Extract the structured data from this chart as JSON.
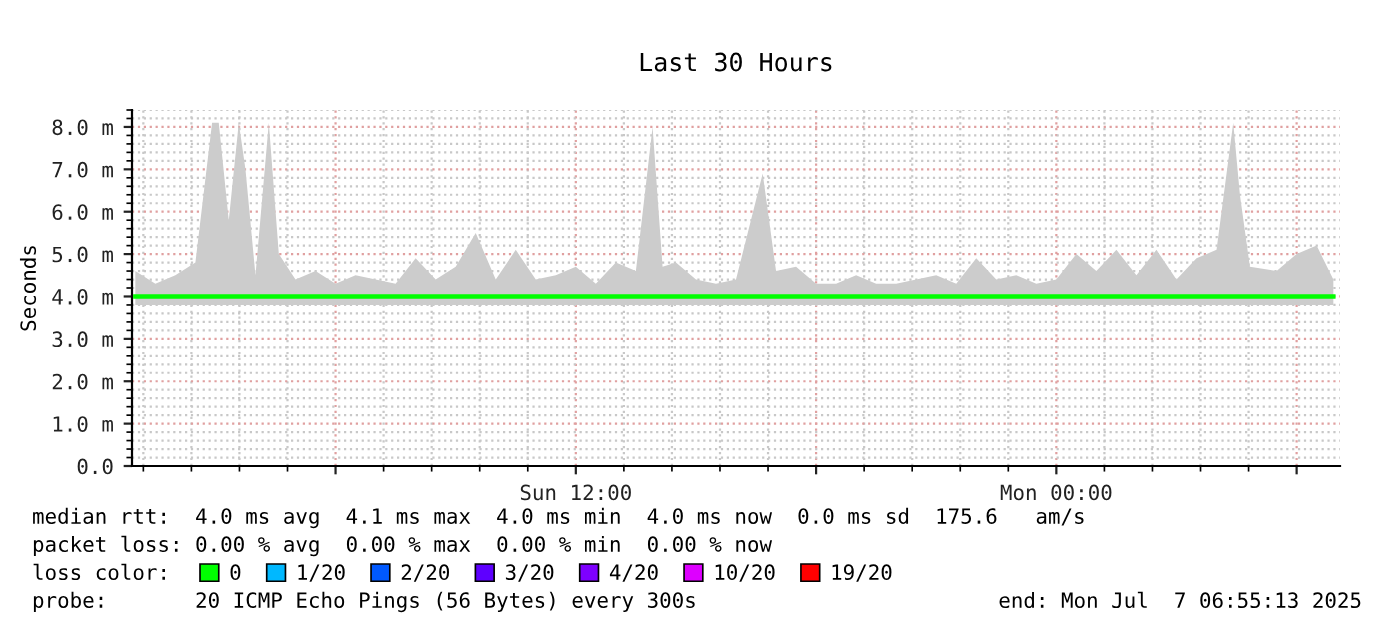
{
  "chart_data": {
    "type": "line",
    "title": "Last 30 Hours",
    "ylabel": "Seconds",
    "xlim": [
      "2025-07-06T00:55",
      "2025-07-07T07:05"
    ],
    "xticks": [
      {
        "value": "2025-07-06T06:00",
        "label": null
      },
      {
        "value": "2025-07-06T12:00",
        "label": "Sun 12:00"
      },
      {
        "value": "2025-07-06T18:00",
        "label": null
      },
      {
        "value": "2025-07-07T00:00",
        "label": "Mon 00:00"
      },
      {
        "value": "2025-07-07T06:00",
        "label": null
      }
    ],
    "ylim": [
      0,
      8.4
    ],
    "yticks": [
      {
        "value": 0,
        "label": "0.0"
      },
      {
        "value": 1,
        "label": "1.0 m"
      },
      {
        "value": 2,
        "label": "2.0 m"
      },
      {
        "value": 3,
        "label": "3.0 m"
      },
      {
        "value": 4,
        "label": "4.0 m"
      },
      {
        "value": 5,
        "label": "5.0 m"
      },
      {
        "value": 6,
        "label": "6.0 m"
      },
      {
        "value": 7,
        "label": "7.0 m"
      },
      {
        "value": 8,
        "label": "8.0 m"
      }
    ],
    "grid": true,
    "legend": "bottom",
    "legend_title": "loss color:",
    "line_style": "solid",
    "marker": "none",
    "x": [
      "2025-07-06T01:00",
      "2025-07-06T01:30",
      "2025-07-06T02:00",
      "2025-07-06T02:30",
      "2025-07-06T02:55",
      "2025-07-06T03:05",
      "2025-07-06T03:20",
      "2025-07-06T03:35",
      "2025-07-06T03:45",
      "2025-07-06T04:00",
      "2025-07-06T04:20",
      "2025-07-06T04:35",
      "2025-07-06T05:00",
      "2025-07-06T05:30",
      "2025-07-06T06:00",
      "2025-07-06T06:30",
      "2025-07-06T07:00",
      "2025-07-06T07:30",
      "2025-07-06T08:00",
      "2025-07-06T08:30",
      "2025-07-06T09:00",
      "2025-07-06T09:30",
      "2025-07-06T10:00",
      "2025-07-06T10:30",
      "2025-07-06T11:00",
      "2025-07-06T11:30",
      "2025-07-06T12:00",
      "2025-07-06T12:30",
      "2025-07-06T13:00",
      "2025-07-06T13:30",
      "2025-07-06T13:55",
      "2025-07-06T14:10",
      "2025-07-06T14:30",
      "2025-07-06T15:00",
      "2025-07-06T15:30",
      "2025-07-06T16:00",
      "2025-07-06T16:40",
      "2025-07-06T17:00",
      "2025-07-06T17:30",
      "2025-07-06T18:00",
      "2025-07-06T18:30",
      "2025-07-06T19:00",
      "2025-07-06T19:30",
      "2025-07-06T20:00",
      "2025-07-06T20:30",
      "2025-07-06T21:00",
      "2025-07-06T21:30",
      "2025-07-06T22:00",
      "2025-07-06T22:30",
      "2025-07-06T23:00",
      "2025-07-06T23:30",
      "2025-07-07T00:00",
      "2025-07-07T00:30",
      "2025-07-07T01:00",
      "2025-07-07T01:30",
      "2025-07-07T02:00",
      "2025-07-07T02:30",
      "2025-07-07T03:00",
      "2025-07-07T03:30",
      "2025-07-07T04:00",
      "2025-07-07T04:25",
      "2025-07-07T04:35",
      "2025-07-07T04:50",
      "2025-07-07T05:30",
      "2025-07-07T06:00",
      "2025-07-07T06:30",
      "2025-07-07T06:55"
    ],
    "series": [
      {
        "name": "0",
        "color": "#00ff00",
        "values": [
          4.0,
          4.0,
          4.0,
          4.0,
          4.0,
          4.0,
          4.0,
          4.0,
          4.0,
          4.0,
          4.0,
          4.0,
          4.0,
          4.0,
          4.0,
          4.0,
          4.0,
          4.0,
          4.0,
          4.0,
          4.0,
          4.0,
          4.0,
          4.0,
          4.0,
          4.0,
          4.0,
          4.0,
          4.0,
          4.0,
          4.0,
          4.0,
          4.0,
          4.0,
          4.0,
          4.0,
          4.0,
          4.0,
          4.0,
          4.0,
          4.0,
          4.0,
          4.0,
          4.0,
          4.0,
          4.0,
          4.0,
          4.0,
          4.0,
          4.0,
          4.0,
          4.0,
          4.0,
          4.0,
          4.0,
          4.0,
          4.0,
          4.0,
          4.0,
          4.0,
          4.0,
          4.0,
          4.0,
          4.0,
          4.0,
          4.0,
          4.0
        ],
        "lower": [
          3.8,
          3.8,
          3.8,
          3.8,
          3.8,
          3.8,
          3.8,
          3.8,
          3.8,
          3.8,
          3.8,
          3.8,
          3.8,
          3.8,
          3.8,
          3.8,
          3.8,
          3.8,
          3.8,
          3.8,
          3.8,
          3.8,
          3.8,
          3.8,
          3.8,
          3.8,
          3.8,
          3.8,
          3.8,
          3.8,
          3.8,
          3.8,
          3.8,
          3.8,
          3.8,
          3.8,
          3.8,
          3.8,
          3.8,
          3.8,
          3.8,
          3.8,
          3.8,
          3.8,
          3.8,
          3.8,
          3.8,
          3.8,
          3.8,
          3.8,
          3.8,
          3.8,
          3.8,
          3.8,
          3.8,
          3.8,
          3.8,
          3.8,
          3.8,
          3.8,
          3.8,
          3.8,
          3.8,
          3.8,
          3.8,
          3.8,
          3.8
        ],
        "upper": [
          4.6,
          4.3,
          4.5,
          4.8,
          8.1,
          8.1,
          5.8,
          8.1,
          7.0,
          4.5,
          8.1,
          5.0,
          4.4,
          4.6,
          4.3,
          4.5,
          4.4,
          4.3,
          4.9,
          4.4,
          4.7,
          5.5,
          4.4,
          5.1,
          4.4,
          4.5,
          4.7,
          4.3,
          4.8,
          4.6,
          8.0,
          4.7,
          4.8,
          4.4,
          4.3,
          4.4,
          6.9,
          4.6,
          4.7,
          4.3,
          4.3,
          4.5,
          4.3,
          4.3,
          4.4,
          4.5,
          4.3,
          4.9,
          4.4,
          4.5,
          4.3,
          4.4,
          5.0,
          4.6,
          5.1,
          4.5,
          5.1,
          4.4,
          4.9,
          5.1,
          8.1,
          6.4,
          4.7,
          4.6,
          5.0,
          5.2,
          4.4
        ]
      },
      {
        "name": "1/20",
        "color": "#00b8ff",
        "values": [
          null,
          null,
          null,
          null,
          null,
          null,
          null,
          null,
          null,
          null,
          null,
          null,
          null,
          null,
          null,
          null,
          null,
          null,
          null,
          null,
          null,
          null,
          null,
          null,
          null,
          null,
          null,
          null,
          null,
          null,
          null,
          null,
          null,
          null,
          null,
          null,
          null,
          null,
          null,
          null,
          null,
          null,
          null,
          null,
          null,
          null,
          null,
          null,
          null,
          null,
          null,
          null,
          null,
          null,
          null,
          null,
          null,
          null,
          null,
          null,
          null,
          null,
          null,
          null,
          null,
          null,
          null
        ]
      },
      {
        "name": "2/20",
        "color": "#0059ff",
        "values": [
          null,
          null,
          null,
          null,
          null,
          null,
          null,
          null,
          null,
          null,
          null,
          null,
          null,
          null,
          null,
          null,
          null,
          null,
          null,
          null,
          null,
          null,
          null,
          null,
          null,
          null,
          null,
          null,
          null,
          null,
          null,
          null,
          null,
          null,
          null,
          null,
          null,
          null,
          null,
          null,
          null,
          null,
          null,
          null,
          null,
          null,
          null,
          null,
          null,
          null,
          null,
          null,
          null,
          null,
          null,
          null,
          null,
          null,
          null,
          null,
          null,
          null,
          null,
          null,
          null,
          null,
          null
        ]
      },
      {
        "name": "3/20",
        "color": "#5e00ff",
        "values": [
          null,
          null,
          null,
          null,
          null,
          null,
          null,
          null,
          null,
          null,
          null,
          null,
          null,
          null,
          null,
          null,
          null,
          null,
          null,
          null,
          null,
          null,
          null,
          null,
          null,
          null,
          null,
          null,
          null,
          null,
          null,
          null,
          null,
          null,
          null,
          null,
          null,
          null,
          null,
          null,
          null,
          null,
          null,
          null,
          null,
          null,
          null,
          null,
          null,
          null,
          null,
          null,
          null,
          null,
          null,
          null,
          null,
          null,
          null,
          null,
          null,
          null,
          null,
          null,
          null,
          null,
          null
        ]
      },
      {
        "name": "4/20",
        "color": "#7e00ff",
        "values": [
          null,
          null,
          null,
          null,
          null,
          null,
          null,
          null,
          null,
          null,
          null,
          null,
          null,
          null,
          null,
          null,
          null,
          null,
          null,
          null,
          null,
          null,
          null,
          null,
          null,
          null,
          null,
          null,
          null,
          null,
          null,
          null,
          null,
          null,
          null,
          null,
          null,
          null,
          null,
          null,
          null,
          null,
          null,
          null,
          null,
          null,
          null,
          null,
          null,
          null,
          null,
          null,
          null,
          null,
          null,
          null,
          null,
          null,
          null,
          null,
          null,
          null,
          null,
          null,
          null,
          null,
          null
        ]
      },
      {
        "name": "10/20",
        "color": "#dd00ff",
        "values": [
          null,
          null,
          null,
          null,
          null,
          null,
          null,
          null,
          null,
          null,
          null,
          null,
          null,
          null,
          null,
          null,
          null,
          null,
          null,
          null,
          null,
          null,
          null,
          null,
          null,
          null,
          null,
          null,
          null,
          null,
          null,
          null,
          null,
          null,
          null,
          null,
          null,
          null,
          null,
          null,
          null,
          null,
          null,
          null,
          null,
          null,
          null,
          null,
          null,
          null,
          null,
          null,
          null,
          null,
          null,
          null,
          null,
          null,
          null,
          null,
          null,
          null,
          null,
          null,
          null,
          null,
          null
        ]
      },
      {
        "name": "19/20",
        "color": "#ff0000",
        "values": [
          null,
          null,
          null,
          null,
          null,
          null,
          null,
          null,
          null,
          null,
          null,
          null,
          null,
          null,
          null,
          null,
          null,
          null,
          null,
          null,
          null,
          null,
          null,
          null,
          null,
          null,
          null,
          null,
          null,
          null,
          null,
          null,
          null,
          null,
          null,
          null,
          null,
          null,
          null,
          null,
          null,
          null,
          null,
          null,
          null,
          null,
          null,
          null,
          null,
          null,
          null,
          null,
          null,
          null,
          null,
          null,
          null,
          null,
          null,
          null,
          null,
          null,
          null,
          null,
          null,
          null,
          null
        ]
      }
    ],
    "annotations": [
      "median rtt:  4.0 ms avg  4.1 ms max  4.0 ms min  4.0 ms now  0.0 ms sd  175.6   am/s",
      "packet loss: 0.00 % avg  0.00 % max  0.00 % min  0.00 % now",
      "probe:       20 ICMP Echo Pings (56 Bytes) every 300s",
      "end: Mon Jul  7 06:55:13 2025"
    ]
  }
}
